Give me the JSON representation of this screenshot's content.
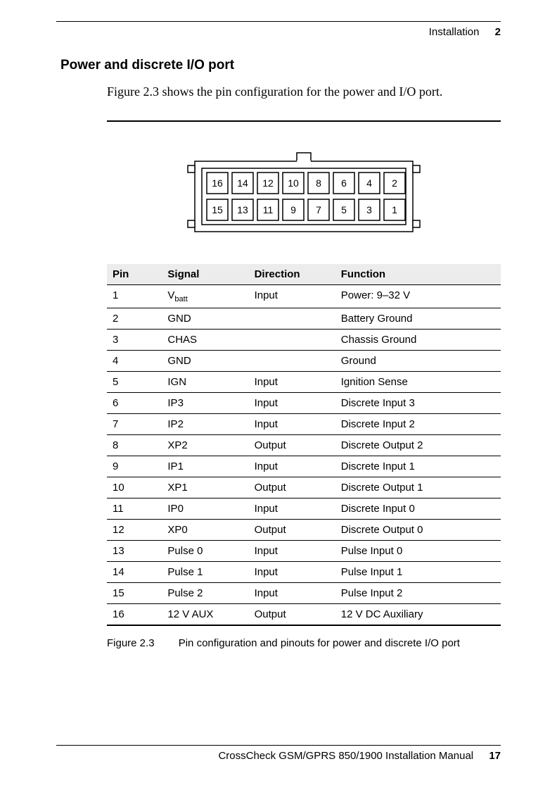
{
  "header": {
    "chapter_title": "Installation",
    "chapter_number": "2"
  },
  "section_title": "Power and discrete I/O port",
  "body_text": "Figure 2.3 shows the pin configuration for the power and I/O port.",
  "connector": {
    "top_row": [
      "16",
      "14",
      "12",
      "10",
      "8",
      "6",
      "4",
      "2"
    ],
    "bottom_row": [
      "15",
      "13",
      "11",
      "9",
      "7",
      "5",
      "3",
      "1"
    ]
  },
  "table": {
    "columns": [
      "Pin",
      "Signal",
      "Direction",
      "Function"
    ],
    "rows": [
      [
        "1",
        "V<sub>batt</sub>",
        "Input",
        "Power: 9–32 V"
      ],
      [
        "2",
        "GND",
        "",
        "Battery Ground"
      ],
      [
        "3",
        "CHAS",
        "",
        "Chassis Ground"
      ],
      [
        "4",
        "GND",
        "",
        "Ground"
      ],
      [
        "5",
        "IGN",
        "Input",
        "Ignition Sense"
      ],
      [
        "6",
        "IP3",
        "Input",
        "Discrete Input 3"
      ],
      [
        "7",
        "IP2",
        "Input",
        "Discrete Input 2"
      ],
      [
        "8",
        "XP2",
        "Output",
        "Discrete Output 2"
      ],
      [
        "9",
        "IP1",
        "Input",
        "Discrete Input 1"
      ],
      [
        "10",
        "XP1",
        "Output",
        "Discrete Output 1"
      ],
      [
        "11",
        "IP0",
        "Input",
        "Discrete Input 0"
      ],
      [
        "12",
        "XP0",
        "Output",
        "Discrete Output 0"
      ],
      [
        "13",
        "Pulse 0",
        "Input",
        "Pulse Input 0"
      ],
      [
        "14",
        "Pulse 1",
        "Input",
        "Pulse Input 1"
      ],
      [
        "15",
        "Pulse 2",
        "Input",
        "Pulse Input 2"
      ],
      [
        "16",
        "12 V AUX",
        "Output",
        "12 V DC Auxiliary"
      ]
    ]
  },
  "figure_caption": {
    "number": "Figure 2.3",
    "text": "Pin configuration and pinouts for power and discrete I/O port"
  },
  "footer": {
    "manual": "CrossCheck GSM/GPRS 850/1900 Installation Manual",
    "page": "17"
  }
}
